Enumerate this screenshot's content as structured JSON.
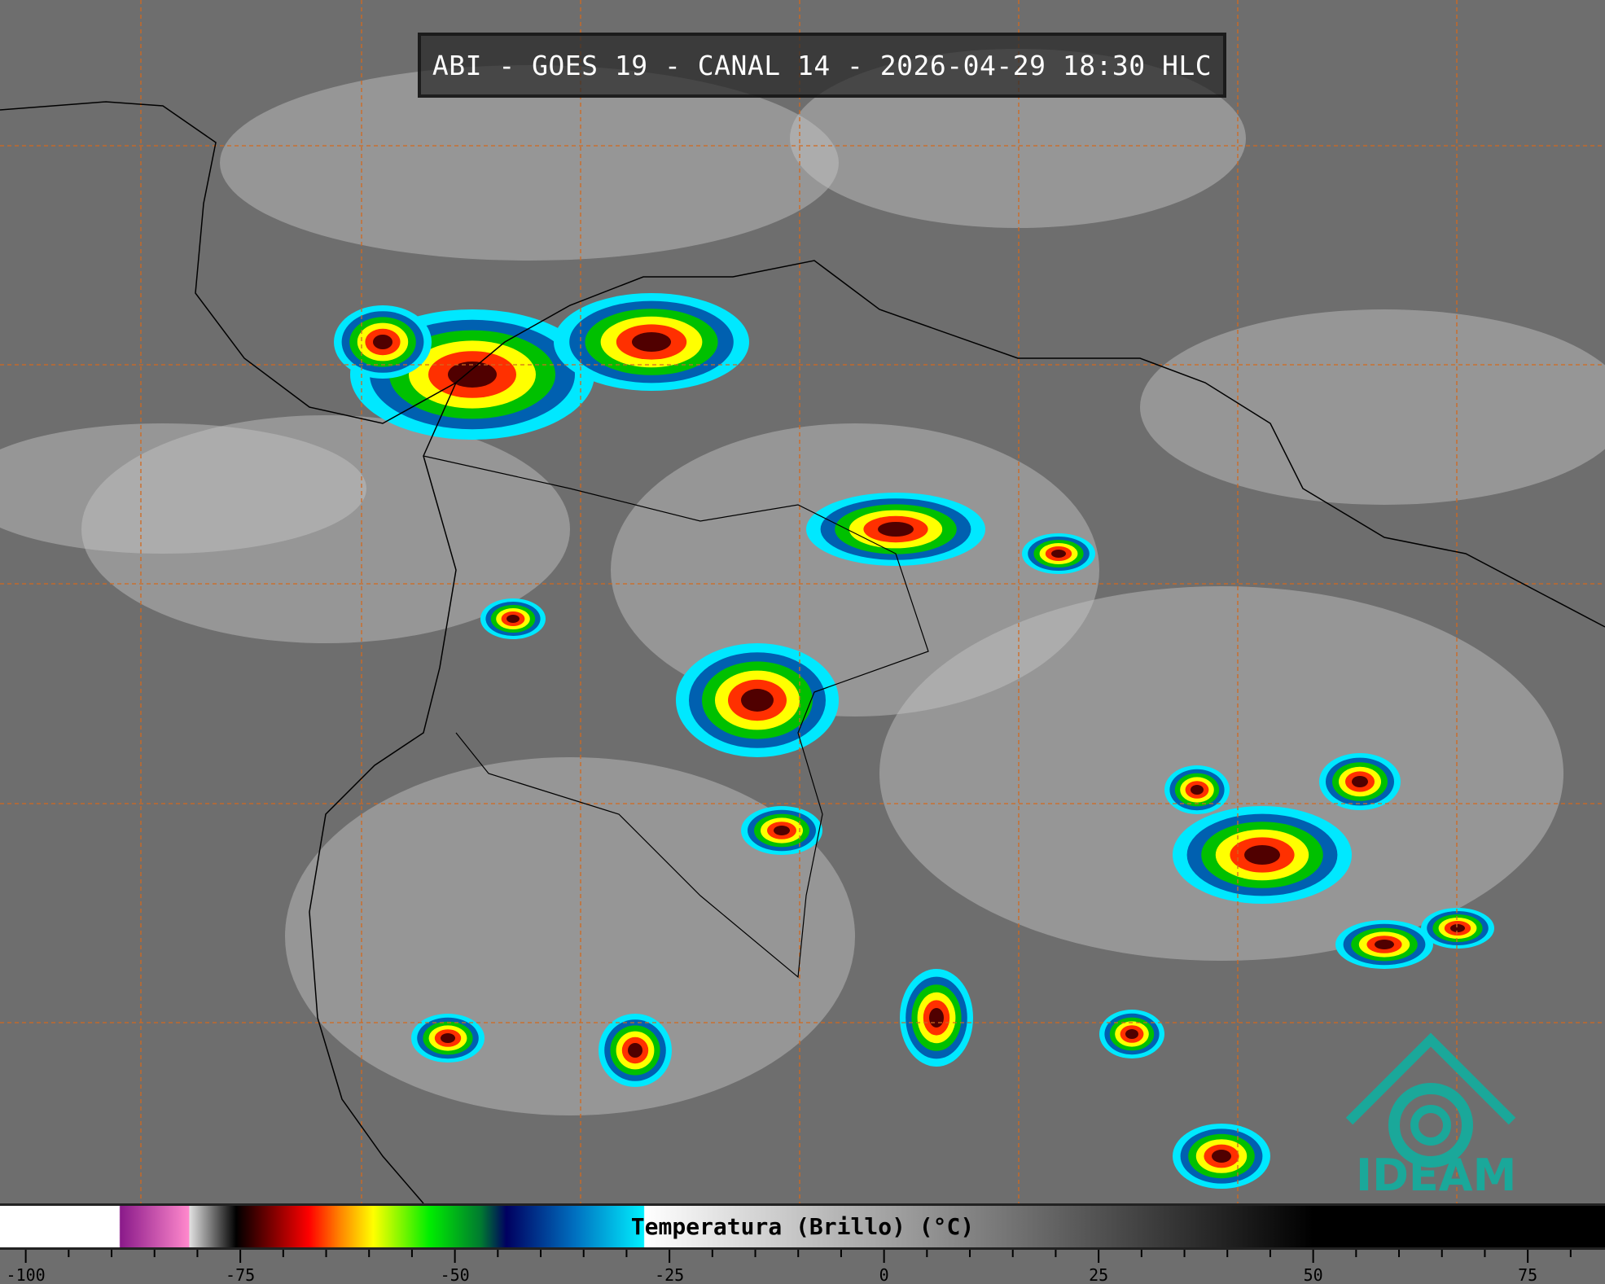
{
  "title": "ABI - GOES 19 - CANAL 14 - 2026-04-29 18:30 HLC",
  "colorbar": {
    "label": "Temperatura (Brillo) (°C)",
    "range": [
      -103,
      84
    ],
    "major_ticks": [
      -100,
      -75,
      -50,
      -25,
      0,
      25,
      50,
      75
    ],
    "tick_labels": [
      "-100",
      "-75",
      "-50",
      "-25",
      "0",
      "25",
      "50",
      "75"
    ],
    "minor_step": 5,
    "stops": [
      {
        "value": -103,
        "color": "#ffffff"
      },
      {
        "value": -89.1,
        "color": "#ffffff"
      },
      {
        "value": -89,
        "color": "#8a1a8a"
      },
      {
        "value": -81,
        "color": "#ff88cc"
      },
      {
        "value": -80.9,
        "color": "#e0e0e0"
      },
      {
        "value": -75.5,
        "color": "#000000"
      },
      {
        "value": -73.8,
        "color": "#300000"
      },
      {
        "value": -67,
        "color": "#ff0000"
      },
      {
        "value": -63.5,
        "color": "#ff8000"
      },
      {
        "value": -59.5,
        "color": "#ffff00"
      },
      {
        "value": -53,
        "color": "#00ee00"
      },
      {
        "value": -47,
        "color": "#007a30"
      },
      {
        "value": -44,
        "color": "#000060"
      },
      {
        "value": -36,
        "color": "#0070c0"
      },
      {
        "value": -28,
        "color": "#00f0ff"
      },
      {
        "value": -27.9,
        "color": "#ffffff"
      },
      {
        "value": 50,
        "color": "#000000"
      },
      {
        "value": 84,
        "color": "#000000"
      }
    ]
  },
  "logo": {
    "text": "IDEAM",
    "color": "#1aa89a"
  },
  "colors": {
    "grid": "#d2691e",
    "coast": "#000000",
    "background": "#6e6e6e"
  }
}
